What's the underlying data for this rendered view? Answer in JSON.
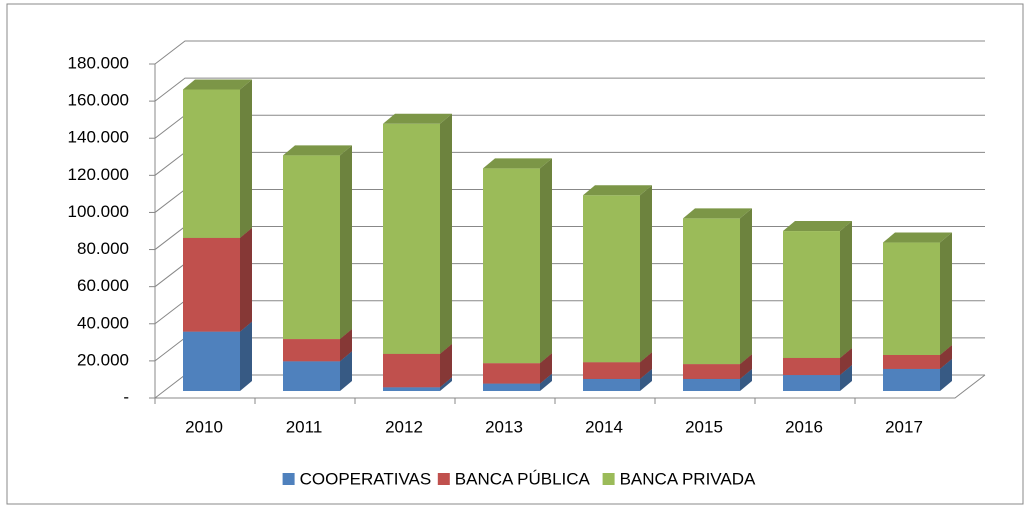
{
  "chart_data": {
    "type": "bar3d_stacked",
    "categories": [
      "2010",
      "2011",
      "2012",
      "2013",
      "2014",
      "2015",
      "2016",
      "2017"
    ],
    "series": [
      {
        "name": "COOPERATIVAS",
        "color": "#4f81bd",
        "values": [
          32000,
          16000,
          2000,
          4000,
          6500,
          6500,
          8600,
          11900
        ]
      },
      {
        "name": "BANCA PÚBLICA",
        "color": "#c0504d",
        "values": [
          50500,
          12000,
          18000,
          11000,
          9000,
          8000,
          9200,
          7500
        ]
      },
      {
        "name": "BANCA PRIVADA",
        "color": "#9bbb59",
        "values": [
          80000,
          99000,
          124000,
          105000,
          90000,
          78500,
          68400,
          60600
        ]
      }
    ],
    "ylim": [
      0,
      180000
    ],
    "yticks": [
      {
        "value": 0,
        "label": "-"
      },
      {
        "value": 20000,
        "label": "20.000"
      },
      {
        "value": 40000,
        "label": "40.000"
      },
      {
        "value": 60000,
        "label": "60.000"
      },
      {
        "value": 80000,
        "label": "80.000"
      },
      {
        "value": 100000,
        "label": "100.000"
      },
      {
        "value": 120000,
        "label": "120.000"
      },
      {
        "value": 140000,
        "label": "140.000"
      },
      {
        "value": 160000,
        "label": "160.000"
      },
      {
        "value": 180000,
        "label": "180.000"
      }
    ],
    "grid": true,
    "legend": "bottom"
  }
}
